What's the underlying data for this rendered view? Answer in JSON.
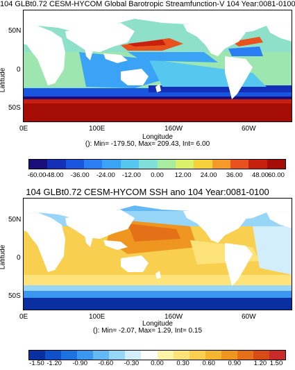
{
  "map1": {
    "title": "104 GLBt0.72 CESM-HYCOM Global Barotropic Streamfunction-V 104 Year:0081-0100",
    "ylabel": "Latitude",
    "xlabel": "Longitude",
    "lat_ticks": [
      "50N",
      "0",
      "50S"
    ],
    "lon_ticks": [
      "0E",
      "100E",
      "160W",
      "60W"
    ],
    "stats": "(): Min= -179.50, Max= 209.43, Int= 6.00",
    "colorbar_labels": [
      "-60.00",
      "-48.00",
      "-36.00",
      "-24.00",
      "-12.00",
      "0.00",
      "12.00",
      "24.00",
      "36.00",
      "48.00",
      "60.00"
    ],
    "colorbar_colors": [
      "#1a0f7a",
      "#1530b8",
      "#1a55e0",
      "#2a7df2",
      "#3aa3f5",
      "#56c8ef",
      "#7fe0d8",
      "#a8eca0",
      "#d9f06a",
      "#f5d23a",
      "#f59a2a",
      "#e8521e",
      "#c8200e",
      "#a50c06"
    ]
  },
  "map2": {
    "title": "104 GLBt0.72 CESM-HYCOM SSH ano 104 Year:0081-0100",
    "ylabel": "Latitude",
    "xlabel": "Longitude",
    "lat_ticks": [
      "50N",
      "0",
      "50S"
    ],
    "lon_ticks": [
      "0E",
      "100E",
      "160W",
      "60W"
    ],
    "stats": "(): Min= -2.07, Max= 1.29, Int= 0.15",
    "colorbar_labels": [
      "-1.50",
      "-1.20",
      "-0.90",
      "-0.60",
      "-0.30",
      "0.00",
      "0.30",
      "0.60",
      "0.90",
      "1.20",
      "1.50"
    ],
    "colorbar_colors": [
      "#0a2fa0",
      "#1050c8",
      "#1c72e0",
      "#3a96ee",
      "#64b8f4",
      "#98d6f8",
      "#d2eefa",
      "#fdfdfd",
      "#fff3a8",
      "#fde37a",
      "#f8cf4e",
      "#f4b530",
      "#ee9620",
      "#e47018",
      "#d84a16",
      "#c92a2a"
    ]
  }
}
